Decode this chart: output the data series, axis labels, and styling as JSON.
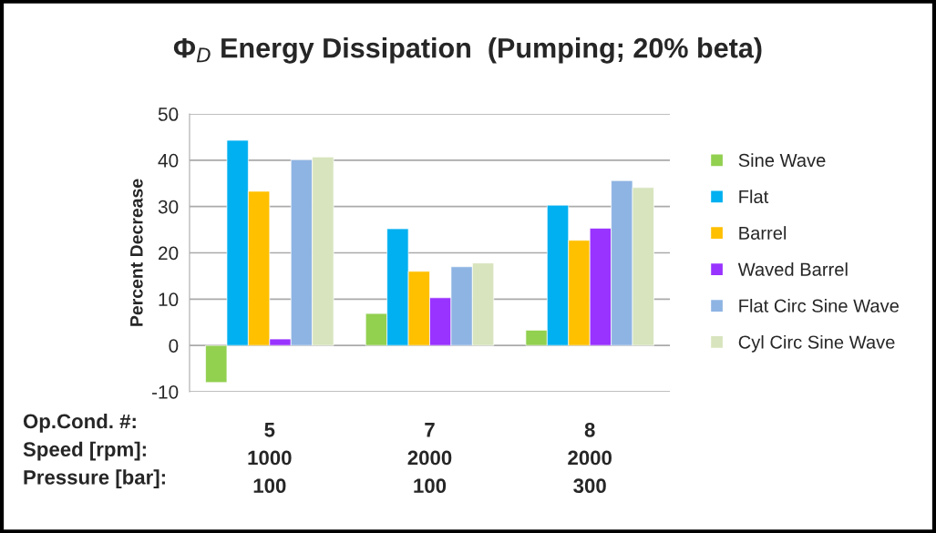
{
  "chart_data": {
    "type": "bar",
    "title": "Φ$_{D}$ Energy Dissipation  (Pumping; 20% beta)",
    "ylabel": "Percent Decrease",
    "categories": [
      "5\n1000\n100",
      "7\n2000\n100",
      "8\n2000\n300"
    ],
    "annotations": [
      "Op.Cond. #:",
      "Speed [rpm]:",
      "Pressure [bar]:"
    ],
    "series": [
      {
        "name": "Sine Wave",
        "color": "#92d050",
        "values": [
          -8.0,
          6.9,
          3.3
        ]
      },
      {
        "name": "Flat",
        "color": "#00b0f0",
        "values": [
          44.3,
          25.2,
          30.3
        ]
      },
      {
        "name": "Barrel",
        "color": "#ffc000",
        "values": [
          33.3,
          16.0,
          22.7
        ]
      },
      {
        "name": "Waved Barrel",
        "color": "#9933ff",
        "values": [
          1.4,
          10.3,
          25.3
        ]
      },
      {
        "name": "Flat Circ Sine Wave",
        "color": "#8eb4e3",
        "values": [
          40.1,
          17.0,
          35.6
        ]
      },
      {
        "name": "Cyl Circ Sine Wave",
        "color": "#d7e4bd",
        "values": [
          40.7,
          17.8,
          34.1
        ]
      }
    ],
    "ylim": [
      -10,
      50
    ],
    "yticks": [
      -10,
      0,
      10,
      20,
      30,
      40,
      50
    ],
    "grid": "y",
    "legend": "right"
  }
}
